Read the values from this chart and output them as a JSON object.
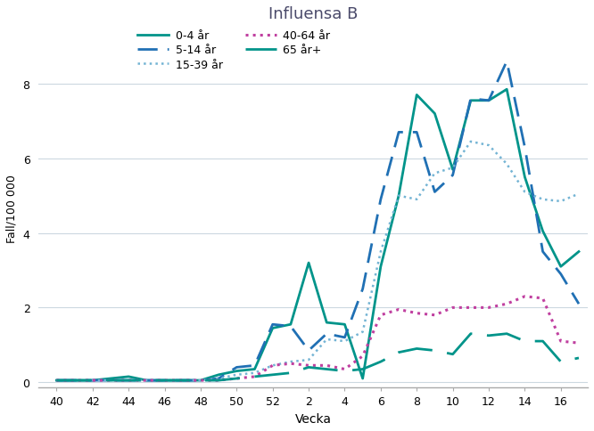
{
  "title": "Influensa B",
  "xlabel": "Vecka",
  "ylabel": "Fall/100 000",
  "ylim": [
    -0.15,
    9.5
  ],
  "yticks": [
    0,
    2,
    4,
    6,
    8
  ],
  "xtick_labels": [
    "40",
    "42",
    "44",
    "46",
    "48",
    "50",
    "52",
    "2",
    "4",
    "6",
    "8",
    "10",
    "12",
    "14",
    "16"
  ],
  "background_color": "#ffffff",
  "grid_color": "#ccd8e0",
  "title_color": "#4a4a6a",
  "series": {
    "0-4 år": {
      "color": "#00948a",
      "linestyle": "solid",
      "linewidth": 2.0,
      "x": [
        40,
        41,
        42,
        43,
        44,
        45,
        46,
        47,
        48,
        49,
        50,
        51,
        52,
        53,
        54,
        55,
        56,
        57,
        58,
        59,
        60,
        61,
        62,
        63,
        64,
        65,
        66,
        67,
        68,
        69
      ],
      "y": [
        0.05,
        0.05,
        0.05,
        0.1,
        0.15,
        0.05,
        0.05,
        0.05,
        0.05,
        0.2,
        0.3,
        0.35,
        1.45,
        1.55,
        3.2,
        1.6,
        1.55,
        0.1,
        3.1,
        5.0,
        7.7,
        7.2,
        5.7,
        7.55,
        7.55,
        7.85,
        5.5,
        4.05,
        3.1,
        3.5
      ]
    },
    "5-14 år": {
      "color": "#2070b4",
      "linestyle": "dashed",
      "linewidth": 2.0,
      "dashes": [
        8,
        4
      ],
      "x": [
        40,
        41,
        42,
        43,
        44,
        45,
        46,
        47,
        48,
        49,
        50,
        51,
        52,
        53,
        54,
        55,
        56,
        57,
        58,
        59,
        60,
        61,
        62,
        63,
        64,
        65,
        66,
        67,
        68,
        69
      ],
      "y": [
        0.05,
        0.05,
        0.05,
        0.05,
        0.05,
        0.05,
        0.05,
        0.05,
        0.05,
        0.1,
        0.4,
        0.45,
        1.55,
        1.5,
        0.85,
        1.3,
        1.2,
        2.5,
        4.9,
        6.7,
        6.7,
        5.1,
        5.55,
        7.6,
        7.55,
        8.6,
        6.3,
        3.5,
        2.9,
        2.1
      ]
    },
    "15-39 år": {
      "color": "#74b4d4",
      "linestyle": "dotted",
      "linewidth": 1.8,
      "x": [
        40,
        41,
        42,
        43,
        44,
        45,
        46,
        47,
        48,
        49,
        50,
        51,
        52,
        53,
        54,
        55,
        56,
        57,
        58,
        59,
        60,
        61,
        62,
        63,
        64,
        65,
        66,
        67,
        68,
        69
      ],
      "y": [
        0.05,
        0.05,
        0.05,
        0.05,
        0.05,
        0.05,
        0.05,
        0.05,
        0.05,
        0.1,
        0.2,
        0.25,
        0.45,
        0.55,
        0.6,
        1.15,
        1.1,
        1.35,
        3.5,
        5.0,
        4.9,
        5.6,
        5.75,
        6.45,
        6.35,
        5.85,
        5.1,
        4.9,
        4.85,
        5.05
      ]
    },
    "40-64 år": {
      "color": "#c040a0",
      "linestyle": "dotted",
      "linewidth": 2.2,
      "x": [
        40,
        41,
        42,
        43,
        44,
        45,
        46,
        47,
        48,
        49,
        50,
        51,
        52,
        53,
        54,
        55,
        56,
        57,
        58,
        59,
        60,
        61,
        62,
        63,
        64,
        65,
        66,
        67,
        68,
        69
      ],
      "y": [
        0.05,
        0.05,
        0.05,
        0.05,
        0.05,
        0.05,
        0.05,
        0.05,
        0.05,
        0.05,
        0.1,
        0.15,
        0.45,
        0.5,
        0.45,
        0.45,
        0.35,
        0.7,
        1.8,
        1.95,
        1.85,
        1.8,
        2.0,
        2.0,
        2.0,
        2.1,
        2.3,
        2.25,
        1.1,
        1.05
      ]
    },
    "65 år+": {
      "color": "#00948a",
      "linestyle": "dashed",
      "linewidth": 2.0,
      "dashes": [
        14,
        6
      ],
      "x": [
        40,
        41,
        42,
        43,
        44,
        45,
        46,
        47,
        48,
        49,
        50,
        51,
        52,
        53,
        54,
        55,
        56,
        57,
        58,
        59,
        60,
        61,
        62,
        63,
        64,
        65,
        66,
        67,
        68,
        69
      ],
      "y": [
        0.05,
        0.05,
        0.05,
        0.05,
        0.05,
        0.05,
        0.05,
        0.05,
        0.05,
        0.05,
        0.1,
        0.15,
        0.2,
        0.25,
        0.4,
        0.35,
        0.3,
        0.35,
        0.55,
        0.8,
        0.9,
        0.85,
        0.75,
        1.3,
        1.25,
        1.3,
        1.1,
        1.1,
        0.55,
        0.65
      ]
    }
  },
  "legend": {
    "row1": [
      "0-4 år",
      "5-14 år"
    ],
    "row2": [
      "15-39 år",
      "40-64 år"
    ],
    "row3": [
      "65 år+"
    ]
  }
}
